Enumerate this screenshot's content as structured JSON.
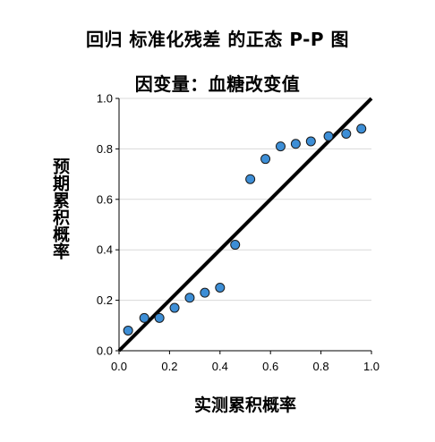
{
  "chart_data": {
    "type": "scatter",
    "title": "回归 标准化残差 的正态 P-P 图",
    "subtitle": "因变量：血糖改变值",
    "xlabel": "实测累积概率",
    "ylabel": "预期累积概率",
    "xlim": [
      0,
      1
    ],
    "ylim": [
      0,
      1
    ],
    "xticks": [
      "0.0",
      "0.2",
      "0.4",
      "0.6",
      "0.8",
      "1.0"
    ],
    "yticks": [
      "0.0",
      "0.2",
      "0.4",
      "0.6",
      "0.8",
      "1.0"
    ],
    "grid": "horizontal",
    "reference_line": {
      "from": [
        0,
        0
      ],
      "to": [
        1,
        1
      ],
      "color": "#000000"
    },
    "points": {
      "color": "#3d8ed6",
      "x": [
        0.036,
        0.1,
        0.16,
        0.22,
        0.28,
        0.34,
        0.4,
        0.46,
        0.52,
        0.58,
        0.64,
        0.7,
        0.76,
        0.83,
        0.9,
        0.96
      ],
      "y": [
        0.08,
        0.13,
        0.13,
        0.17,
        0.21,
        0.23,
        0.25,
        0.42,
        0.68,
        0.76,
        0.81,
        0.82,
        0.83,
        0.85,
        0.86,
        0.88
      ]
    }
  }
}
